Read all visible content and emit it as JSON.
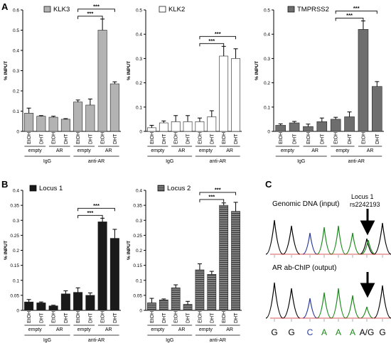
{
  "panel_labels": {
    "A": "A",
    "B": "B",
    "C": "C"
  },
  "group_labels": {
    "empty": "empty",
    "AR": "AR",
    "IgG": "IgG",
    "antiAR": "anti-AR"
  },
  "treatments": [
    "EtOH",
    "DHT"
  ],
  "ylabel": "% INPUT",
  "sig": "***",
  "colors": {
    "grey": "#b3b3b3",
    "white": "#ffffff",
    "dark": "#6e6e6e",
    "black": "#1a1a1a",
    "stripe": "#5a5a5a"
  },
  "chart_data": [
    {
      "type": "bar",
      "legend": "KLK3",
      "fill": "grey",
      "ylim": [
        0,
        0.6
      ],
      "yticks": [
        0,
        0.1,
        0.2,
        0.3,
        0.4,
        0.5,
        0.6
      ],
      "categories": [
        "EtOH",
        "DHT",
        "EtOH",
        "DHT",
        "EtOH",
        "DHT",
        "EtOH",
        "DHT"
      ],
      "values": [
        0.09,
        0.075,
        0.07,
        0.06,
        0.145,
        0.13,
        0.5,
        0.235
      ],
      "errors": [
        0.025,
        0.003,
        0.005,
        0.003,
        0.01,
        0.03,
        0.055,
        0.01
      ]
    },
    {
      "type": "bar",
      "legend": "KLK2",
      "fill": "white",
      "ylim": [
        0,
        0.5
      ],
      "yticks": [
        0,
        0.1,
        0.2,
        0.3,
        0.4,
        0.5
      ],
      "categories": [
        "EtOH",
        "DHT",
        "EtOH",
        "DHT",
        "EtOH",
        "DHT",
        "EtOH",
        "DHT"
      ],
      "values": [
        0.015,
        0.035,
        0.04,
        0.04,
        0.04,
        0.06,
        0.31,
        0.3
      ],
      "errors": [
        0.01,
        0.008,
        0.025,
        0.025,
        0.015,
        0.025,
        0.04,
        0.04
      ]
    },
    {
      "type": "bar",
      "legend": "TMPRSS2",
      "fill": "dark",
      "ylim": [
        0,
        0.5
      ],
      "yticks": [
        0,
        0.1,
        0.2,
        0.3,
        0.4,
        0.5
      ],
      "categories": [
        "EtOH",
        "DHT",
        "EtOH",
        "DHT",
        "EtOH",
        "DHT",
        "EtOH",
        "DHT"
      ],
      "values": [
        0.025,
        0.035,
        0.02,
        0.04,
        0.05,
        0.06,
        0.42,
        0.185
      ],
      "errors": [
        0.006,
        0.006,
        0.01,
        0.015,
        0.008,
        0.02,
        0.035,
        0.02
      ]
    },
    {
      "type": "bar",
      "legend": "Locus 1",
      "fill": "black",
      "ylim": [
        0,
        0.4
      ],
      "yticks": [
        0,
        0.05,
        0.1,
        0.15,
        0.2,
        0.25,
        0.3,
        0.35,
        0.4
      ],
      "categories": [
        "EtOH",
        "DHT",
        "EtOH",
        "DHT",
        "EtOH",
        "DHT",
        "EtOH",
        "DHT"
      ],
      "values": [
        0.028,
        0.025,
        0.015,
        0.055,
        0.06,
        0.05,
        0.295,
        0.24
      ],
      "errors": [
        0.008,
        0.003,
        0.002,
        0.01,
        0.015,
        0.008,
        0.012,
        0.03
      ]
    },
    {
      "type": "bar",
      "legend": "Locus 2",
      "fill": "stripe",
      "ylim": [
        0,
        0.4
      ],
      "yticks": [
        0,
        0.05,
        0.1,
        0.15,
        0.2,
        0.25,
        0.3,
        0.35,
        0.4
      ],
      "categories": [
        "EtOH",
        "DHT",
        "EtOH",
        "DHT",
        "EtOH",
        "DHT",
        "EtOH",
        "DHT"
      ],
      "values": [
        0.025,
        0.035,
        0.075,
        0.02,
        0.135,
        0.12,
        0.35,
        0.33
      ],
      "errors": [
        0.015,
        0.003,
        0.01,
        0.01,
        0.02,
        0.01,
        0.008,
        0.03
      ]
    }
  ],
  "sequencing": {
    "top_title": "Genomic DNA (input)",
    "bottom_title": "AR ab-ChIP (output)",
    "locus_label": "Locus 1",
    "snp_label": "rs2242193",
    "bases": [
      {
        "text": "G",
        "color": "#000000"
      },
      {
        "text": "G",
        "color": "#000000"
      },
      {
        "text": "C",
        "color": "#2a3a9c"
      },
      {
        "text": "A",
        "color": "#1a8a1a"
      },
      {
        "text": "A",
        "color": "#1a8a1a"
      },
      {
        "text": "A",
        "color": "#1a8a1a"
      },
      {
        "text": "A/G",
        "color": "#000000"
      },
      {
        "text": "G",
        "color": "#000000"
      }
    ]
  }
}
